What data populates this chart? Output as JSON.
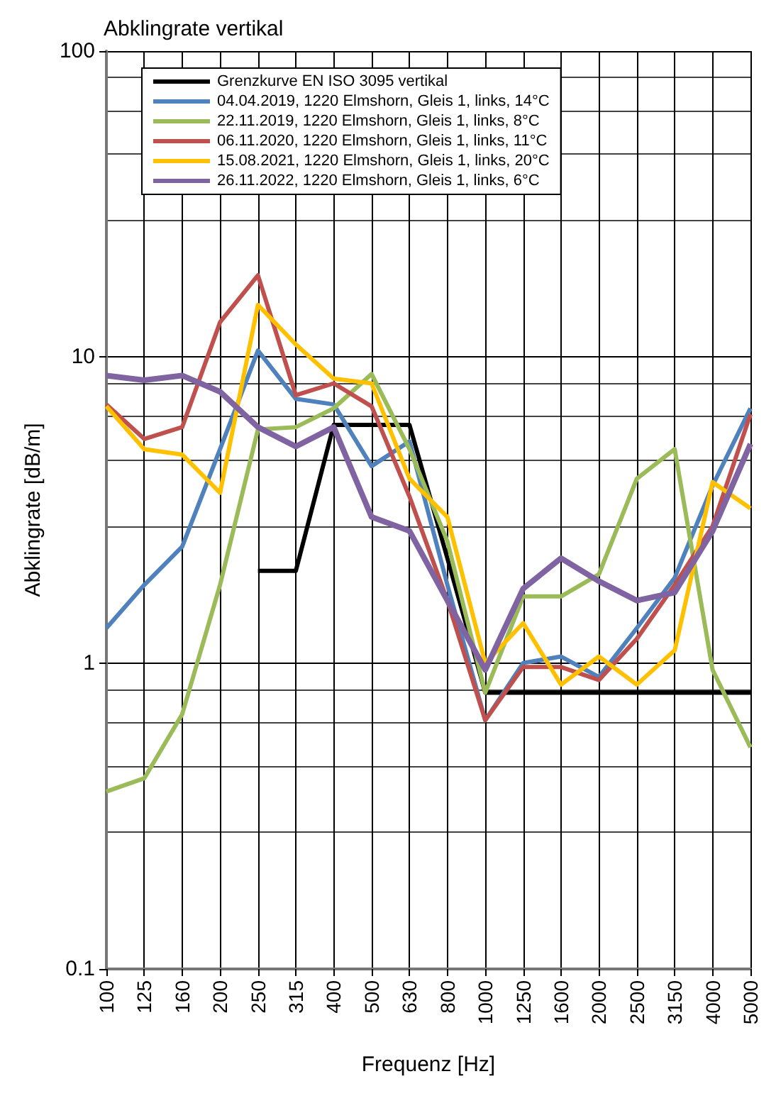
{
  "chart_data": {
    "type": "line",
    "title": "Abklingrate vertikal",
    "xlabel": "Frequenz [Hz]",
    "ylabel": "Abklingrate [dB/m]",
    "categories": [
      "100",
      "125",
      "160",
      "200",
      "250",
      "315",
      "400",
      "500",
      "630",
      "800",
      "1000",
      "1250",
      "1600",
      "2000",
      "2500",
      "3150",
      "4000",
      "5000"
    ],
    "series": [
      {
        "name": "Grenzkurve EN ISO 3095 vertikal",
        "color": "#000000",
        "values": [
          null,
          null,
          null,
          null,
          2,
          2,
          6,
          6,
          6,
          2.2,
          0.8,
          0.8,
          0.8,
          0.8,
          0.8,
          0.8,
          0.8,
          0.8
        ]
      },
      {
        "name": "04.04.2019, 1220 Elmshorn, Gleis 1, links, 14°C",
        "color": "#4f81bd",
        "values": [
          1.3,
          1.8,
          2.4,
          5,
          10.5,
          7.3,
          7,
          4.4,
          5.3,
          1.8,
          0.65,
          1,
          1.05,
          0.9,
          1.3,
          1.9,
          3.8,
          6.8
        ]
      },
      {
        "name": "22.11.2019, 1220 Elmshorn, Gleis 1, links, 8°C",
        "color": "#9bbb59",
        "values": [
          0.38,
          0.42,
          0.68,
          1.8,
          5.8,
          5.9,
          6.8,
          8.8,
          5,
          2.5,
          0.8,
          1.65,
          1.65,
          1.95,
          4,
          5,
          0.95,
          0.53
        ]
      },
      {
        "name": "06.11.2020, 1220 Elmshorn, Gleis 1, links, 11°C",
        "color": "#c0504d",
        "values": [
          7,
          5.4,
          5.9,
          13,
          18.5,
          7.5,
          8.2,
          6.9,
          3.5,
          1.6,
          0.65,
          0.97,
          0.97,
          0.88,
          1.2,
          1.8,
          2.8,
          6.5
        ]
      },
      {
        "name": "15.08.2021, 1220 Elmshorn, Gleis 1, links, 20°C",
        "color": "#ffc000",
        "values": [
          6.9,
          5,
          4.8,
          3.6,
          14.8,
          11,
          8.5,
          8.2,
          4,
          3,
          1,
          1.35,
          0.85,
          1.05,
          0.85,
          1.1,
          3.9,
          3.2
        ]
      },
      {
        "name": "26.11.2022, 1220 Elmshorn, Gleis 1, links, 6°C",
        "color": "#8064a2",
        "values": [
          8.7,
          8.4,
          8.7,
          7.7,
          5.9,
          5.1,
          5.9,
          3,
          2.7,
          1.6,
          0.95,
          1.75,
          2.2,
          1.85,
          1.6,
          1.7,
          2.7,
          5.2
        ]
      }
    ],
    "ylim": [
      0.1,
      100
    ],
    "yticks": [
      0.1,
      1,
      10,
      100
    ],
    "log": "y",
    "grid": true,
    "legend": "top",
    "marker": "none",
    "line_style": "solid"
  }
}
